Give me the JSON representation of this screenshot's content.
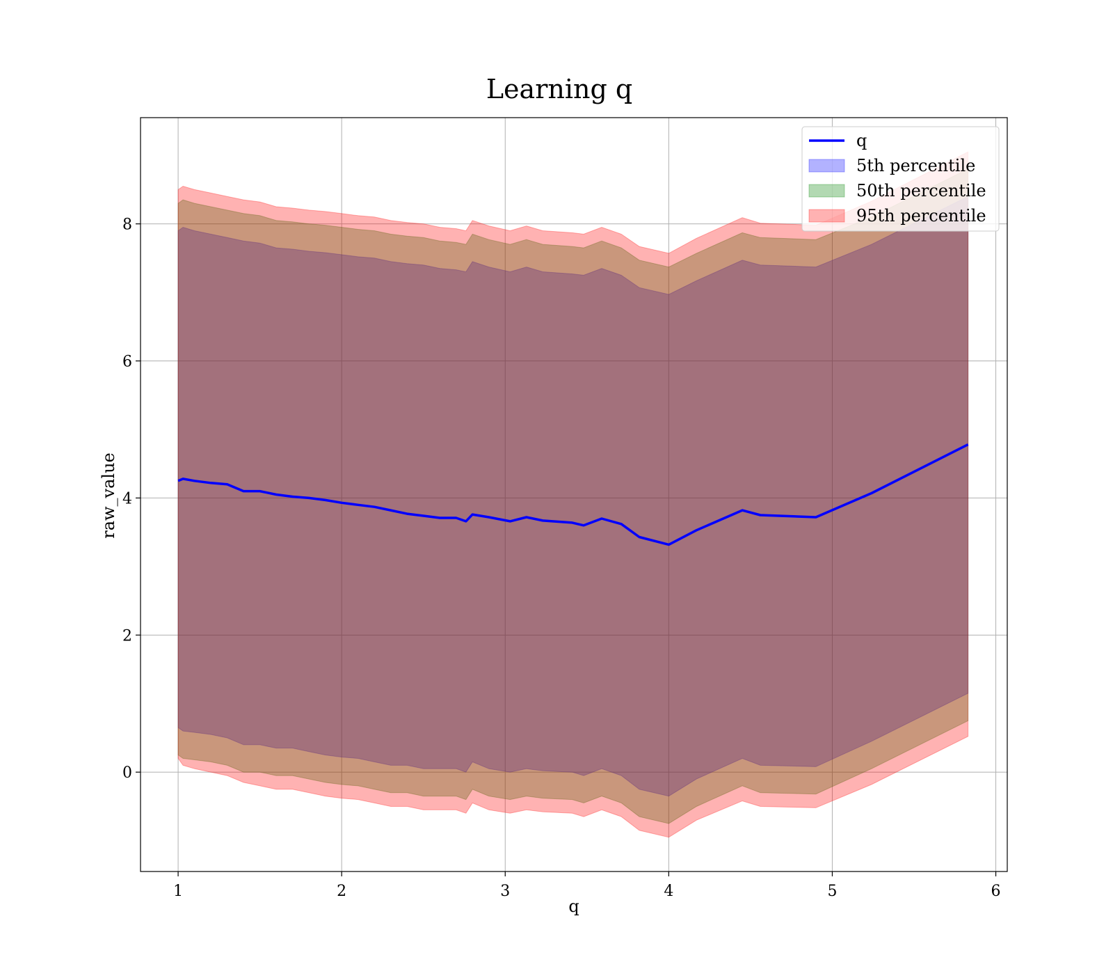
{
  "chart_data": {
    "type": "area",
    "title": "Learning q",
    "xlabel": "q",
    "ylabel": "raw_value",
    "xlim": [
      0.77,
      6.07
    ],
    "ylim": [
      -1.45,
      9.55
    ],
    "xticks": [
      1,
      2,
      3,
      4,
      5,
      6
    ],
    "yticks": [
      0,
      2,
      4,
      6,
      8
    ],
    "grid": true,
    "legend_position": "upper right",
    "colors": {
      "line": "#0000ff",
      "band_5th": "#0000ff",
      "band_50th": "#008000",
      "band_95th": "#ff0000",
      "grid": "#b0b0b0"
    },
    "x": [
      1.0,
      1.03,
      1.1,
      1.2,
      1.3,
      1.4,
      1.5,
      1.6,
      1.7,
      1.8,
      1.9,
      2.0,
      2.1,
      2.2,
      2.3,
      2.4,
      2.5,
      2.6,
      2.7,
      2.76,
      2.8,
      2.9,
      3.03,
      3.13,
      3.23,
      3.41,
      3.48,
      3.59,
      3.71,
      3.82,
      4.0,
      4.17,
      4.45,
      4.56,
      4.9,
      5.24,
      5.83
    ],
    "series": [
      {
        "name": "q",
        "kind": "line",
        "values": [
          4.25,
          4.28,
          4.25,
          4.22,
          4.2,
          4.1,
          4.1,
          4.05,
          4.02,
          4.0,
          3.97,
          3.93,
          3.9,
          3.87,
          3.82,
          3.77,
          3.74,
          3.71,
          3.71,
          3.66,
          3.76,
          3.72,
          3.66,
          3.72,
          3.67,
          3.64,
          3.6,
          3.7,
          3.62,
          3.43,
          3.32,
          3.53,
          3.82,
          3.75,
          3.72,
          4.07,
          4.78
        ]
      },
      {
        "name": "5th percentile",
        "kind": "band",
        "lower": [
          0.65,
          0.6,
          0.58,
          0.55,
          0.5,
          0.4,
          0.4,
          0.35,
          0.35,
          0.3,
          0.25,
          0.22,
          0.2,
          0.15,
          0.1,
          0.1,
          0.05,
          0.05,
          0.05,
          0.0,
          0.15,
          0.05,
          0.0,
          0.05,
          0.02,
          0.0,
          -0.05,
          0.05,
          -0.05,
          -0.25,
          -0.35,
          -0.1,
          0.2,
          0.1,
          0.08,
          0.45,
          1.15
        ],
        "upper": [
          7.9,
          7.95,
          7.9,
          7.85,
          7.8,
          7.75,
          7.72,
          7.65,
          7.63,
          7.6,
          7.58,
          7.55,
          7.52,
          7.5,
          7.45,
          7.42,
          7.4,
          7.35,
          7.33,
          7.3,
          7.45,
          7.37,
          7.3,
          7.37,
          7.3,
          7.27,
          7.25,
          7.35,
          7.25,
          7.07,
          6.97,
          7.17,
          7.47,
          7.4,
          7.37,
          7.7,
          8.4
        ]
      },
      {
        "name": "50th percentile",
        "kind": "band",
        "lower": [
          0.25,
          0.2,
          0.18,
          0.15,
          0.1,
          0.0,
          0.0,
          -0.05,
          -0.05,
          -0.1,
          -0.15,
          -0.18,
          -0.2,
          -0.25,
          -0.3,
          -0.3,
          -0.35,
          -0.35,
          -0.35,
          -0.4,
          -0.25,
          -0.35,
          -0.4,
          -0.35,
          -0.38,
          -0.4,
          -0.45,
          -0.35,
          -0.45,
          -0.65,
          -0.75,
          -0.5,
          -0.2,
          -0.3,
          -0.32,
          0.05,
          0.75
        ],
        "upper": [
          8.3,
          8.35,
          8.3,
          8.25,
          8.2,
          8.15,
          8.12,
          8.05,
          8.03,
          8.0,
          7.98,
          7.95,
          7.92,
          7.9,
          7.85,
          7.82,
          7.8,
          7.75,
          7.73,
          7.7,
          7.85,
          7.77,
          7.7,
          7.77,
          7.7,
          7.67,
          7.65,
          7.75,
          7.65,
          7.47,
          7.37,
          7.57,
          7.87,
          7.8,
          7.77,
          8.1,
          8.8
        ]
      },
      {
        "name": "95th percentile",
        "kind": "band",
        "lower": [
          0.2,
          0.1,
          0.05,
          0.0,
          -0.05,
          -0.15,
          -0.2,
          -0.25,
          -0.25,
          -0.3,
          -0.35,
          -0.38,
          -0.4,
          -0.45,
          -0.5,
          -0.5,
          -0.55,
          -0.55,
          -0.55,
          -0.6,
          -0.45,
          -0.55,
          -0.6,
          -0.55,
          -0.58,
          -0.6,
          -0.65,
          -0.55,
          -0.65,
          -0.85,
          -0.95,
          -0.7,
          -0.42,
          -0.5,
          -0.52,
          -0.18,
          0.52
        ],
        "upper": [
          8.5,
          8.55,
          8.5,
          8.45,
          8.4,
          8.35,
          8.32,
          8.25,
          8.23,
          8.2,
          8.18,
          8.15,
          8.12,
          8.1,
          8.05,
          8.02,
          8.0,
          7.95,
          7.93,
          7.9,
          8.05,
          7.97,
          7.9,
          7.97,
          7.9,
          7.87,
          7.85,
          7.95,
          7.85,
          7.67,
          7.57,
          7.79,
          8.09,
          8.01,
          7.98,
          8.33,
          9.05
        ]
      }
    ]
  }
}
